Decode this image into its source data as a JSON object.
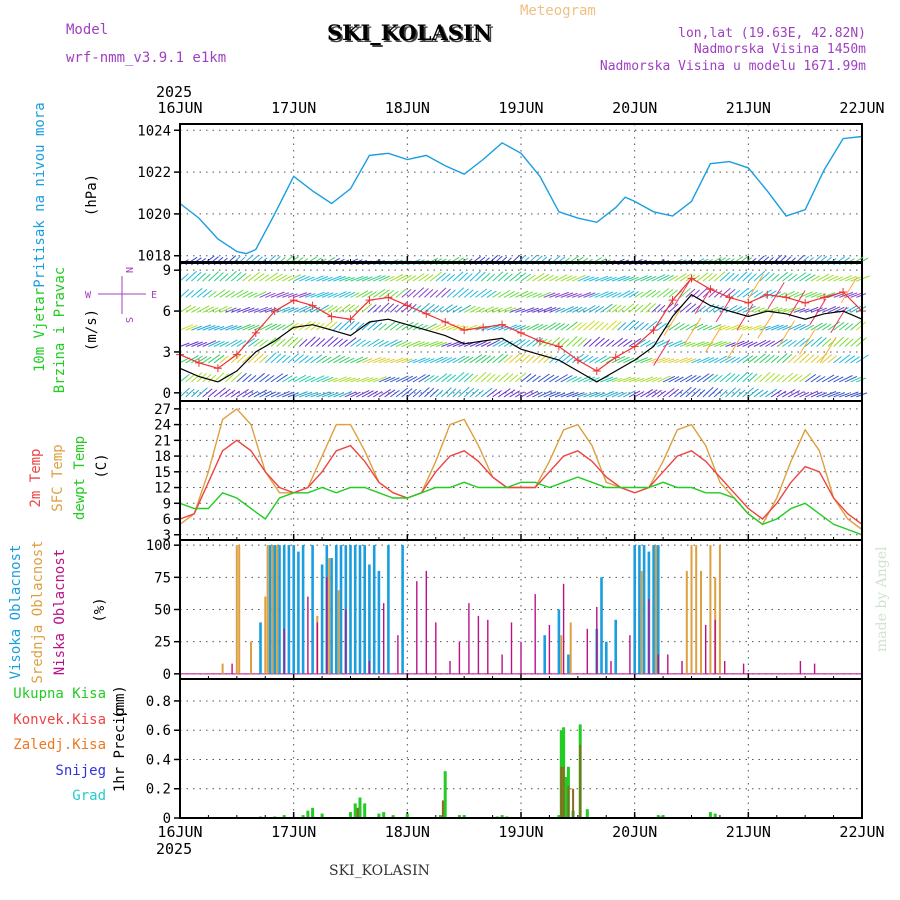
{
  "header": {
    "model_label": "Model",
    "model_value": "wrf-nmm_v3.9.1 e1km",
    "title": "SKI_KOLASIN",
    "meteogram_label": "Meteogram",
    "location": "lon,lat (19.63E, 42.82N)",
    "altitude": "Nadmorska Visina 1450m",
    "model_altitude": "Nadmorska Visina u modelu 1671.99m",
    "year": "2025",
    "watermark": "made by Angel",
    "footer": "SKI_KOLASIN"
  },
  "colors": {
    "pressure": "#1a9ee0",
    "wind_label": "#22cc22",
    "temp2m": "#ee4444",
    "sfc_temp": "#dda040",
    "dewpoint": "#22cc22",
    "cloud_high": "#1a9ee0",
    "cloud_mid": "#dda040",
    "cloud_low": "#bb1188",
    "precip_total": "#22cc22",
    "precip_conv": "#ee4444",
    "precip_frozen": "#ee7722",
    "precip_snow": "#3333dd",
    "precip_graupel": "#22cccc",
    "header_purple": "#a040c0",
    "header_orange": "#f0c080"
  },
  "chart_data": [
    {
      "type": "line",
      "ylabel": "Pritisak na nivou mora",
      "units": "(hPa)",
      "categories": [
        "16JUN",
        "17JUN",
        "18JUN",
        "19JUN",
        "20JUN",
        "21JUN",
        "22JUN"
      ],
      "xlim": [
        0,
        144
      ],
      "ylim": [
        1017.7,
        1024.3
      ],
      "yticks": [
        1018,
        1020,
        1022,
        1024
      ],
      "grid": true,
      "series": [
        {
          "x": [
            0,
            4,
            8,
            12,
            14,
            16,
            20,
            24,
            28,
            32,
            36,
            40,
            44,
            48,
            52,
            56,
            60,
            64,
            68,
            72,
            76,
            80,
            84,
            88,
            92,
            94,
            96,
            100,
            104,
            108,
            112,
            116,
            120,
            124,
            128,
            132,
            136,
            140,
            144
          ],
          "y": [
            1020.5,
            1019.8,
            1018.8,
            1018.2,
            1018.1,
            1018.3,
            1020.0,
            1021.8,
            1021.1,
            1020.5,
            1021.2,
            1022.8,
            1022.9,
            1022.6,
            1022.8,
            1022.3,
            1021.9,
            1022.6,
            1023.4,
            1022.9,
            1021.8,
            1020.1,
            1019.8,
            1019.6,
            1020.3,
            1020.8,
            1020.6,
            1020.1,
            1019.9,
            1020.6,
            1022.4,
            1022.5,
            1022.2,
            1021.1,
            1019.9,
            1020.2,
            1022.1,
            1023.6,
            1023.7
          ]
        }
      ]
    },
    {
      "type": "line",
      "ylabel": "10m Vjetar",
      "ylabel2": "Brzina i Pravac",
      "units": "(m/s)",
      "compass": {
        "n": "N",
        "s": "S",
        "w": "W",
        "e": "E"
      },
      "xlim": [
        0,
        144
      ],
      "ylim": [
        -0.6,
        9.6
      ],
      "yticks": [
        0,
        3,
        6,
        9
      ],
      "grid": true,
      "series": [
        {
          "name": "speed",
          "x": [
            0,
            4,
            8,
            12,
            16,
            20,
            24,
            28,
            32,
            36,
            40,
            44,
            48,
            52,
            56,
            60,
            64,
            68,
            72,
            76,
            80,
            84,
            88,
            92,
            96,
            100,
            104,
            108,
            112,
            116,
            120,
            124,
            128,
            132,
            136,
            140,
            144
          ],
          "y": [
            1.8,
            1.2,
            0.8,
            1.6,
            3.0,
            3.8,
            4.8,
            5.0,
            4.6,
            4.2,
            5.2,
            5.4,
            5.0,
            4.6,
            4.2,
            3.6,
            3.8,
            4.0,
            3.2,
            2.8,
            2.4,
            1.6,
            0.8,
            1.6,
            2.4,
            3.4,
            5.6,
            7.2,
            6.4,
            6.0,
            5.6,
            6.0,
            5.8,
            5.4,
            5.8,
            6.0,
            5.4
          ]
        },
        {
          "name": "gust",
          "x": [
            0,
            4,
            8,
            12,
            16,
            20,
            24,
            28,
            32,
            36,
            40,
            44,
            48,
            52,
            56,
            60,
            64,
            68,
            72,
            76,
            80,
            84,
            88,
            92,
            96,
            100,
            104,
            108,
            112,
            116,
            120,
            124,
            128,
            132,
            136,
            140,
            144
          ],
          "y": [
            2.8,
            2.2,
            1.8,
            2.8,
            4.4,
            6.0,
            6.8,
            6.4,
            5.6,
            5.4,
            6.8,
            7.0,
            6.4,
            5.8,
            5.2,
            4.6,
            4.8,
            5.0,
            4.4,
            3.8,
            3.4,
            2.4,
            1.6,
            2.6,
            3.4,
            4.6,
            6.8,
            8.4,
            7.6,
            7.0,
            6.6,
            7.2,
            7.0,
            6.6,
            7.0,
            7.4,
            6.0
          ]
        }
      ]
    },
    {
      "type": "line",
      "ylabel": "2m Temp",
      "ylabel2": "SFC Temp",
      "ylabel3": "dewpt Temp",
      "units": "(C)",
      "xlim": [
        0,
        144
      ],
      "ylim": [
        2,
        28.5
      ],
      "yticks": [
        3,
        6,
        9,
        12,
        15,
        18,
        21,
        24,
        27
      ],
      "grid": true,
      "series": [
        {
          "name": "2m Temp",
          "x": [
            0,
            3,
            6,
            9,
            12,
            15,
            18,
            21,
            24,
            27,
            30,
            33,
            36,
            39,
            42,
            45,
            48,
            51,
            54,
            57,
            60,
            63,
            66,
            69,
            72,
            75,
            78,
            81,
            84,
            87,
            90,
            93,
            96,
            99,
            102,
            105,
            108,
            111,
            114,
            117,
            120,
            123,
            126,
            129,
            132,
            135,
            138,
            141,
            144
          ],
          "y": [
            6,
            7,
            13,
            19,
            21,
            19,
            15,
            12,
            11,
            12,
            15,
            19,
            20,
            17,
            13,
            11,
            10,
            11,
            15,
            18,
            19,
            17,
            14,
            12,
            12,
            12,
            15,
            18,
            19,
            17,
            14,
            12,
            11,
            12,
            15,
            18,
            19,
            17,
            14,
            11,
            8,
            6,
            9,
            13,
            16,
            15,
            10,
            7,
            5
          ]
        },
        {
          "name": "SFC Temp",
          "x": [
            0,
            3,
            6,
            9,
            12,
            15,
            18,
            21,
            24,
            27,
            30,
            33,
            36,
            39,
            42,
            45,
            48,
            51,
            54,
            57,
            60,
            63,
            66,
            69,
            72,
            75,
            78,
            81,
            84,
            87,
            90,
            93,
            96,
            99,
            102,
            105,
            108,
            111,
            114,
            117,
            120,
            123,
            126,
            129,
            132,
            135,
            138,
            141,
            144
          ],
          "y": [
            5,
            7,
            15,
            25,
            27,
            24,
            15,
            11,
            11,
            12,
            18,
            24,
            24,
            19,
            13,
            11,
            10,
            11,
            17,
            24,
            25,
            20,
            14,
            12,
            12,
            12,
            17,
            23,
            24,
            20,
            13,
            12,
            11,
            12,
            17,
            23,
            24,
            20,
            13,
            10,
            7,
            5,
            10,
            17,
            23,
            19,
            10,
            6,
            4
          ]
        },
        {
          "name": "dewpt Temp",
          "x": [
            0,
            3,
            6,
            9,
            12,
            15,
            18,
            21,
            24,
            27,
            30,
            33,
            36,
            39,
            42,
            45,
            48,
            51,
            54,
            57,
            60,
            63,
            66,
            69,
            72,
            75,
            78,
            81,
            84,
            87,
            90,
            93,
            96,
            99,
            102,
            105,
            108,
            111,
            114,
            117,
            120,
            123,
            126,
            129,
            132,
            135,
            138,
            141,
            144
          ],
          "y": [
            9,
            8,
            8,
            11,
            10,
            8,
            6,
            10,
            11,
            11,
            12,
            11,
            12,
            12,
            11,
            10,
            10,
            11,
            12,
            12,
            13,
            12,
            12,
            12,
            13,
            13,
            12,
            13,
            14,
            13,
            12,
            12,
            12,
            12,
            13,
            12,
            12,
            11,
            11,
            10,
            7,
            5,
            6,
            8,
            9,
            7,
            5,
            4,
            3
          ]
        }
      ]
    },
    {
      "type": "bar",
      "ylabel": "Visoka Oblacnost",
      "ylabel2": "Srednja Oblacnost",
      "ylabel3": "Niska Oblacnost",
      "units": "(%)",
      "xlim": [
        0,
        144
      ],
      "ylim": [
        -4,
        104
      ],
      "yticks": [
        0,
        25,
        50,
        75,
        100
      ],
      "grid": true,
      "series": [
        {
          "name": "Visoka Oblacnost",
          "x": [
            17,
            19,
            20,
            21,
            22,
            23,
            24,
            25,
            26,
            28,
            30,
            31,
            32,
            33,
            34,
            35,
            36,
            37,
            38,
            39,
            40,
            41,
            42,
            44,
            47,
            77,
            80,
            82,
            88,
            89,
            90,
            92,
            96,
            97,
            98,
            99,
            100,
            101
          ],
          "values": [
            40,
            100,
            100,
            100,
            100,
            100,
            100,
            95,
            100,
            100,
            85,
            100,
            90,
            100,
            100,
            100,
            100,
            100,
            100,
            100,
            85,
            100,
            80,
            100,
            100,
            30,
            50,
            15,
            35,
            75,
            25,
            42,
            100,
            100,
            100,
            95,
            100,
            100
          ]
        },
        {
          "name": "Srednja Oblacnost",
          "x": [
            9,
            12,
            12.5,
            15,
            18,
            18.5,
            19.5,
            20.5,
            29,
            31.5,
            33.5,
            80.5,
            82.5,
            97.5,
            100.5,
            107,
            108,
            109,
            110,
            112,
            113,
            114
          ],
          "values": [
            8,
            100,
            100,
            25,
            60,
            100,
            100,
            100,
            45,
            90,
            65,
            30,
            40,
            80,
            100,
            80,
            100,
            100,
            80,
            100,
            75,
            100
          ]
        },
        {
          "name": "Niska Oblacnost",
          "x": [
            11,
            22,
            27,
            29,
            31,
            35,
            40,
            43,
            46,
            50,
            52,
            54,
            57,
            59,
            61,
            63,
            65,
            68,
            70,
            72,
            75,
            78,
            81,
            86,
            88,
            91,
            95,
            99,
            101,
            103,
            106,
            111,
            113,
            115,
            119,
            131,
            134
          ],
          "values": [
            8,
            35,
            60,
            40,
            75,
            50,
            10,
            55,
            30,
            72,
            80,
            40,
            10,
            25,
            55,
            45,
            42,
            15,
            40,
            25,
            62,
            38,
            70,
            35,
            52,
            10,
            30,
            58,
            15,
            15,
            10,
            38,
            42,
            10,
            8,
            10,
            8
          ]
        }
      ]
    },
    {
      "type": "bar",
      "ylabel": "1hr Precip",
      "units": "(mm)",
      "legend": [
        "Ukupna Kisa",
        "Konvek.Kisa",
        "Zaledj.Kisa",
        "Snijeg",
        "Grad"
      ],
      "categories": [
        "16JUN",
        "17JUN",
        "18JUN",
        "19JUN",
        "20JUN",
        "21JUN",
        "22JUN"
      ],
      "xlim": [
        0,
        144
      ],
      "ylim": [
        0,
        0.95
      ],
      "yticks": [
        0,
        0.2,
        0.4,
        0.6,
        0.8
      ],
      "grid": true,
      "series": [
        {
          "name": "Ukupna Kisa",
          "x": [
            17,
            20,
            22,
            26,
            27,
            28,
            30,
            36,
            37,
            38,
            39,
            42,
            43,
            45,
            48,
            55,
            56,
            59,
            60,
            67,
            68,
            69,
            80,
            80.5,
            81,
            81.5,
            82,
            83,
            84.5,
            86,
            101,
            101.5,
            102,
            112,
            113
          ],
          "values": [
            0.01,
            0.01,
            0.02,
            0.02,
            0.05,
            0.07,
            0.03,
            0.04,
            0.1,
            0.14,
            0.1,
            0.03,
            0.04,
            0.02,
            0.03,
            0.02,
            0.32,
            0.02,
            0.02,
            0.01,
            0.02,
            0.01,
            0.02,
            0.6,
            0.62,
            0.28,
            0.35,
            0.05,
            0.64,
            0.06,
            0.02,
            0.01,
            0.02,
            0.04,
            0.03
          ]
        },
        {
          "name": "Konvek.Kisa",
          "x": [
            37.5,
            55.5,
            80.5,
            81,
            82,
            83,
            84.5
          ],
          "values": [
            0.07,
            0.12,
            0.35,
            0.35,
            0.22,
            0.2,
            0.5
          ]
        },
        {
          "name": "Zaledj.Kisa",
          "x": [],
          "values": []
        },
        {
          "name": "Snijeg",
          "x": [],
          "values": []
        },
        {
          "name": "Grad",
          "x": [],
          "values": []
        }
      ]
    }
  ]
}
